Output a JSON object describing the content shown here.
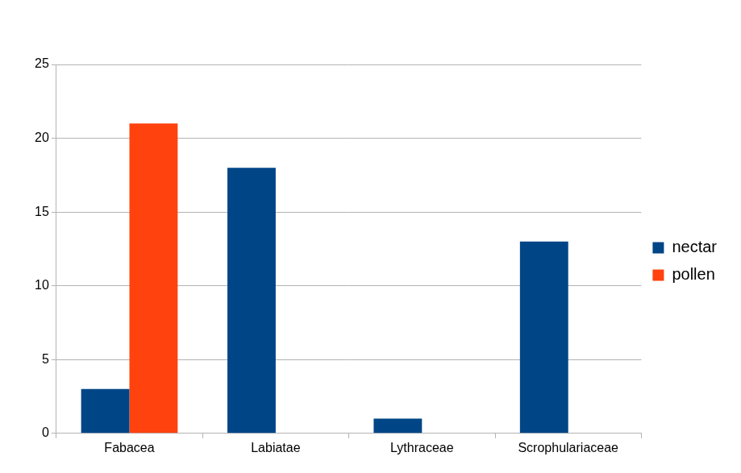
{
  "chart_data": {
    "type": "bar",
    "categories": [
      "Fabacea",
      "Labiatae",
      "Lythraceae",
      "Scrophulariaceae"
    ],
    "series": [
      {
        "name": "nectar",
        "color": "#004586",
        "values": [
          3,
          18,
          1,
          13
        ]
      },
      {
        "name": "pollen",
        "color": "#ff420e",
        "values": [
          21,
          0,
          0,
          0
        ]
      }
    ],
    "ylim": [
      0,
      25
    ],
    "yticks": [
      0,
      5,
      10,
      15,
      20,
      25
    ],
    "grid": true,
    "legend": "right"
  }
}
